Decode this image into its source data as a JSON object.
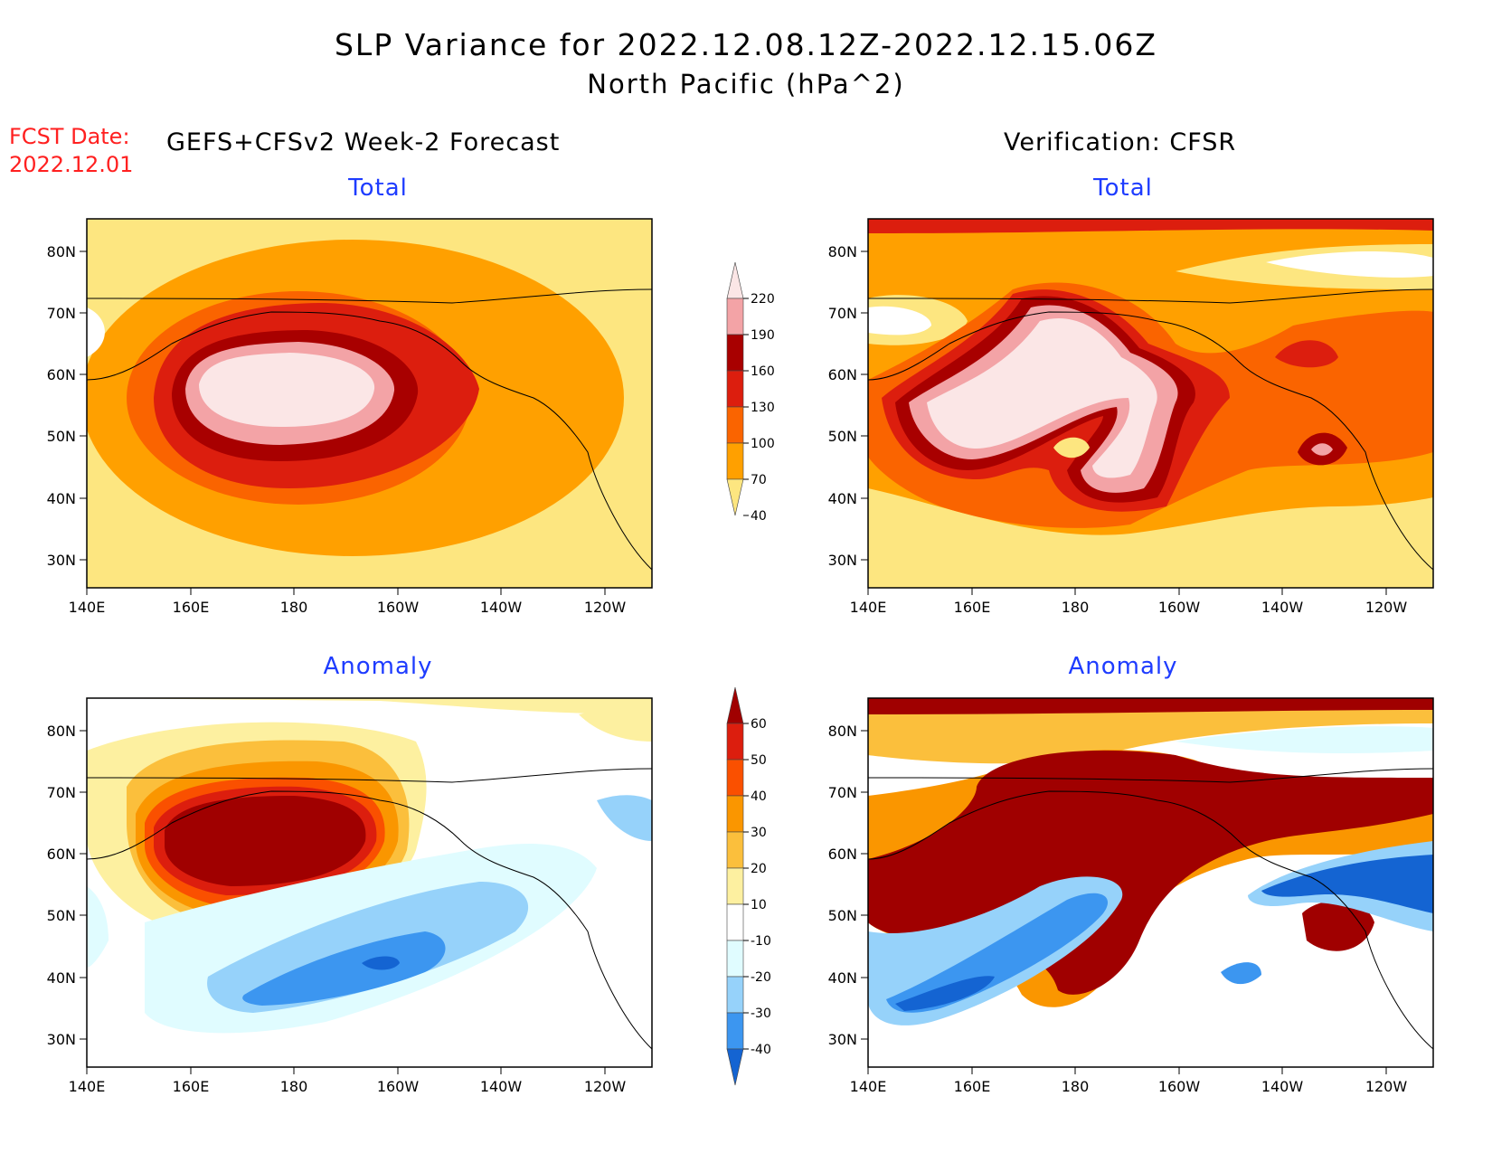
{
  "title": {
    "line1": "SLP Variance for 2022.12.08.12Z-2022.12.15.06Z",
    "line2": "North Pacific (hPa^2)"
  },
  "fcst_date": {
    "label": "FCST Date:",
    "value": "2022.12.01"
  },
  "left_heading": "GEFS+CFSv2 Week-2 Forecast",
  "right_heading": "Verification: CFSR",
  "panels": {
    "forecast_total": {
      "title": "Total"
    },
    "verif_total": {
      "title": "Total"
    },
    "forecast_anomaly": {
      "title": "Anomaly"
    },
    "verif_anomaly": {
      "title": "Anomaly"
    }
  },
  "axes": {
    "lat_ticks": [
      "80N",
      "70N",
      "60N",
      "50N",
      "40N",
      "30N"
    ],
    "lon_ticks": [
      "140E",
      "160E",
      "180",
      "160W",
      "140W",
      "120W"
    ]
  },
  "colorbars": {
    "total": {
      "labels": [
        "220",
        "190",
        "160",
        "130",
        "100",
        "70",
        "40"
      ],
      "colors": [
        "#fbe6e6",
        "#f3a3a6",
        "#a80000",
        "#dc1e0e",
        "#fa6400",
        "#ffa000",
        "#fde680"
      ]
    },
    "anomaly": {
      "labels": [
        "60",
        "50",
        "40",
        "30",
        "20",
        "10",
        "-10",
        "-20",
        "-30",
        "-40"
      ],
      "colors": [
        "#a00000",
        "#dc1e0e",
        "#fa5000",
        "#fa9600",
        "#fbbf3c",
        "#fdf0a0",
        "#ffffff",
        "#e0fcff",
        "#96d2fa",
        "#3c96f0",
        "#1464d2"
      ]
    }
  }
}
